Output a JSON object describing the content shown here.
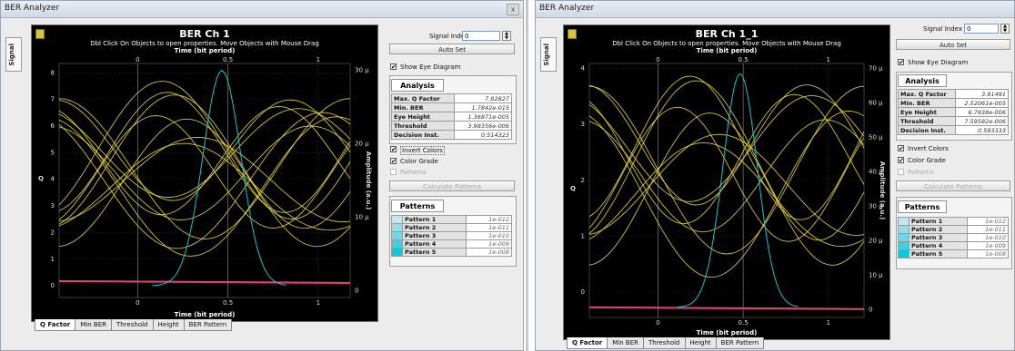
{
  "colors": {
    "trace": "#f2e14b",
    "pulse": "#22c3c8",
    "baseline": "#d8427a",
    "plot_bg": "#000000",
    "swatch": [
      "#bfe9ef",
      "#93dfe8",
      "#6fd6e2",
      "#3bd0de",
      "#12c8d8"
    ]
  },
  "left": {
    "window_title": "BER Analyzer",
    "close_glyph": "x",
    "side_tab": "Signal",
    "plot": {
      "title": "BER Ch 1",
      "subtitle": "Dbl Click On Objects to open properties.  Move Objects with Mouse Drag",
      "top_axis_label": "Time (bit period)",
      "bottom_axis_label": "Time (bit period)",
      "top_ticks": [
        "0",
        "0.5",
        "1"
      ],
      "bottom_ticks": [
        "0",
        "0.5",
        "1"
      ],
      "left_axis_label": "Q",
      "right_axis_label": "Amplitude (a.u.)",
      "left_ticks": [
        "8",
        "7",
        "6",
        "5",
        "4",
        "3",
        "2",
        "1",
        "0"
      ],
      "right_ticks": [
        "30 μ",
        "20 μ",
        "10 μ",
        "0"
      ]
    },
    "tabs": [
      "Q Factor",
      "Min BER",
      "Threshold",
      "Height",
      "BER Pattern"
    ],
    "controls": {
      "signal_index_label": "Signal Index",
      "signal_index_value": "0",
      "auto_set": "Auto Set",
      "show_eye": "Show Eye Diagram",
      "analysis_title": "Analysis",
      "analysis": [
        {
          "k": "Max. Q Factor",
          "v": "7.82827"
        },
        {
          "k": "Min. BER",
          "v": "1.7842e-015"
        },
        {
          "k": "Eye Height",
          "v": "1.36871e-005"
        },
        {
          "k": "Threshold",
          "v": "3.98356e-006"
        },
        {
          "k": "Decision Inst.",
          "v": "0.514323"
        }
      ],
      "invert_colors": "Invert Colors",
      "color_grade": "Color Grade",
      "patterns_cb": "Patterns",
      "calc_patterns": "Calculate Patterns",
      "patterns_title": "Patterns",
      "patterns": [
        {
          "k": "Pattern 1",
          "v": "1e-012"
        },
        {
          "k": "Pattern 2",
          "v": "1e-011"
        },
        {
          "k": "Pattern 3",
          "v": "1e-010"
        },
        {
          "k": "Pattern 4",
          "v": "1e-009"
        },
        {
          "k": "Pattern 5",
          "v": "1e-008"
        }
      ]
    }
  },
  "right": {
    "window_title": "BER Analyzer",
    "side_tab": "Signal",
    "plot": {
      "title": "BER Ch 1_1",
      "subtitle": "Dbl Click On Objects to open properties.  Move Objects with Mouse Drag",
      "top_axis_label": "Time (bit period)",
      "bottom_axis_label": "Time (bit period)",
      "top_ticks": [
        "0",
        "0.5",
        "1"
      ],
      "bottom_ticks": [
        "0",
        "0.5",
        "1"
      ],
      "left_axis_label": "Q",
      "right_axis_label": "Amplitude (a.u.)",
      "left_ticks": [
        "4",
        "3",
        "2",
        "1",
        "0"
      ],
      "right_ticks": [
        "70 μ",
        "60 μ",
        "50 μ",
        "40 μ",
        "30 μ",
        "20 μ",
        "10 μ",
        "0"
      ]
    },
    "tabs": [
      "Q Factor",
      "Min BER",
      "Threshold",
      "Height",
      "BER Pattern"
    ],
    "controls": {
      "signal_index_label": "Signal Index",
      "signal_index_value": "0",
      "auto_set": "Auto Set",
      "show_eye": "Show Eye Diagram",
      "analysis_title": "Analysis",
      "analysis": [
        {
          "k": "Max. Q Factor",
          "v": "3.91491"
        },
        {
          "k": "Min. BER",
          "v": "2.52061e-005"
        },
        {
          "k": "Eye Height",
          "v": "6.7938e-006"
        },
        {
          "k": "Threshold",
          "v": "7.59582e-006"
        },
        {
          "k": "Decision Inst.",
          "v": "0.583333"
        }
      ],
      "invert_colors": "Invert Colors",
      "color_grade": "Color Grade",
      "patterns_cb": "Patterns",
      "calc_patterns": "Calculate Patterns",
      "patterns_title": "Patterns",
      "patterns": [
        {
          "k": "Pattern 1",
          "v": "1e-012"
        },
        {
          "k": "Pattern 2",
          "v": "1e-011"
        },
        {
          "k": "Pattern 3",
          "v": "1e-010"
        },
        {
          "k": "Pattern 4",
          "v": "1e-009"
        },
        {
          "k": "Pattern 5",
          "v": "1e-008"
        }
      ]
    }
  }
}
